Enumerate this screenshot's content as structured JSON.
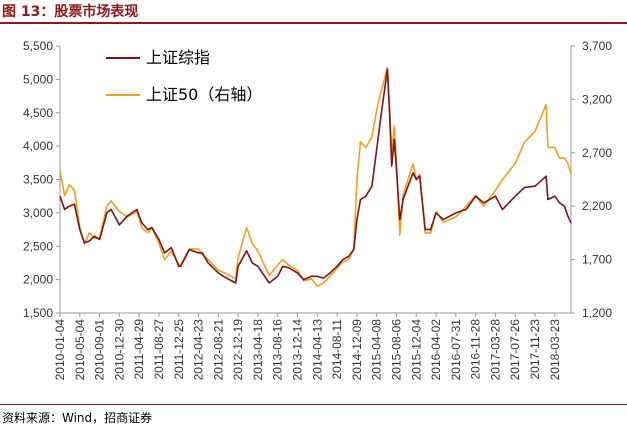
{
  "title": "图 13：股票市场表现",
  "source": "资料来源：Wind，招商证券",
  "colors": {
    "title": "#8b1a1a",
    "series1": "#7b1416",
    "series2": "#f0a020"
  },
  "chart_data": {
    "type": "line",
    "title": "",
    "legend_position": "top-left",
    "grid": false,
    "x_ticks": [
      "2010-01-04",
      "2010-05-04",
      "2010-09-01",
      "2010-12-30",
      "2011-04-29",
      "2011-08-27",
      "2011-12-25",
      "2012-04-23",
      "2012-08-21",
      "2012-12-19",
      "2013-04-18",
      "2013-08-16",
      "2013-12-14",
      "2014-04-13",
      "2014-08-11",
      "2014-12-09",
      "2015-04-08",
      "2015-08-06",
      "2015-12-04",
      "2016-04-02",
      "2016-07-31",
      "2016-11-28",
      "2017-03-28",
      "2017-07-26",
      "2017-11-23",
      "2018-03-23"
    ],
    "y_left": {
      "ticks": [
        "1,500",
        "2,000",
        "2,500",
        "3,000",
        "3,500",
        "4,000",
        "4,500",
        "5,000",
        "5,500"
      ],
      "range": [
        1500,
        5500
      ]
    },
    "y_right": {
      "ticks": [
        "1,200",
        "1,700",
        "2,200",
        "2,700",
        "3,200",
        "3,700"
      ],
      "range": [
        1200,
        3700
      ]
    },
    "series": [
      {
        "name": "上证综指",
        "axis": "left",
        "x": [
          "2010-01-04",
          "2010-02-01",
          "2010-03-01",
          "2010-04-01",
          "2010-05-04",
          "2010-06-01",
          "2010-07-01",
          "2010-08-01",
          "2010-09-01",
          "2010-10-15",
          "2010-11-10",
          "2010-12-30",
          "2011-02-15",
          "2011-04-15",
          "2011-05-15",
          "2011-06-20",
          "2011-07-15",
          "2011-08-27",
          "2011-09-30",
          "2011-11-10",
          "2011-12-25",
          "2012-01-06",
          "2012-02-27",
          "2012-04-23",
          "2012-05-15",
          "2012-06-20",
          "2012-08-21",
          "2012-09-20",
          "2012-12-04",
          "2012-12-19",
          "2013-02-08",
          "2013-03-15",
          "2013-04-18",
          "2013-06-25",
          "2013-08-16",
          "2013-09-15",
          "2013-10-20",
          "2013-12-14",
          "2014-01-20",
          "2014-03-10",
          "2014-04-13",
          "2014-05-20",
          "2014-06-20",
          "2014-08-11",
          "2014-09-15",
          "2014-10-20",
          "2014-11-20",
          "2014-12-09",
          "2014-12-31",
          "2015-02-01",
          "2015-03-10",
          "2015-04-08",
          "2015-05-01",
          "2015-06-12",
          "2015-06-25",
          "2015-07-08",
          "2015-07-24",
          "2015-08-06",
          "2015-08-26",
          "2015-09-15",
          "2015-10-15",
          "2015-11-15",
          "2015-12-04",
          "2015-12-25",
          "2016-01-27",
          "2016-02-29",
          "2016-04-02",
          "2016-05-15",
          "2016-07-31",
          "2016-10-01",
          "2016-11-28",
          "2017-01-15",
          "2017-03-28",
          "2017-05-10",
          "2017-07-26",
          "2017-09-20",
          "2017-11-23",
          "2018-01-29",
          "2018-02-09",
          "2018-03-23",
          "2018-04-20",
          "2018-05-20",
          "2018-06-10",
          "2018-06-29"
        ],
        "values": [
          3250,
          3050,
          3100,
          3130,
          2750,
          2550,
          2580,
          2650,
          2600,
          3000,
          3050,
          2820,
          2950,
          3050,
          2850,
          2750,
          2780,
          2600,
          2400,
          2480,
          2200,
          2200,
          2450,
          2400,
          2400,
          2250,
          2100,
          2050,
          1950,
          2200,
          2430,
          2250,
          2200,
          1950,
          2050,
          2200,
          2180,
          2100,
          2000,
          2050,
          2050,
          2020,
          2080,
          2200,
          2300,
          2350,
          2450,
          2900,
          3200,
          3250,
          3400,
          3950,
          4400,
          5150,
          4500,
          3700,
          4100,
          3650,
          2900,
          3200,
          3400,
          3600,
          3500,
          3550,
          2750,
          2750,
          3000,
          2900,
          3000,
          3050,
          3250,
          3150,
          3250,
          3050,
          3250,
          3380,
          3400,
          3550,
          3200,
          3250,
          3150,
          3100,
          2950,
          2850
        ]
      },
      {
        "name": "上证50（右轴）",
        "axis": "right",
        "x": [
          "2010-01-04",
          "2010-02-01",
          "2010-03-01",
          "2010-04-01",
          "2010-05-04",
          "2010-06-01",
          "2010-07-01",
          "2010-08-01",
          "2010-09-01",
          "2010-10-15",
          "2010-11-10",
          "2010-12-30",
          "2011-02-15",
          "2011-04-15",
          "2011-05-15",
          "2011-06-20",
          "2011-07-15",
          "2011-08-27",
          "2011-09-30",
          "2011-11-10",
          "2011-12-25",
          "2012-01-06",
          "2012-02-27",
          "2012-04-23",
          "2012-05-15",
          "2012-06-20",
          "2012-08-21",
          "2012-09-20",
          "2012-12-04",
          "2012-12-19",
          "2013-02-08",
          "2013-03-15",
          "2013-04-18",
          "2013-06-25",
          "2013-08-16",
          "2013-09-15",
          "2013-10-20",
          "2013-12-14",
          "2014-01-20",
          "2014-03-10",
          "2014-04-13",
          "2014-05-20",
          "2014-06-20",
          "2014-08-11",
          "2014-09-15",
          "2014-10-20",
          "2014-11-20",
          "2014-12-09",
          "2014-12-31",
          "2015-02-01",
          "2015-03-10",
          "2015-04-08",
          "2015-05-01",
          "2015-06-12",
          "2015-06-25",
          "2015-07-08",
          "2015-07-24",
          "2015-08-06",
          "2015-08-26",
          "2015-09-15",
          "2015-10-15",
          "2015-11-15",
          "2015-12-04",
          "2015-12-25",
          "2016-01-27",
          "2016-02-29",
          "2016-04-02",
          "2016-05-15",
          "2016-07-31",
          "2016-10-01",
          "2016-11-28",
          "2017-01-15",
          "2017-03-28",
          "2017-05-10",
          "2017-07-26",
          "2017-09-20",
          "2017-11-23",
          "2018-01-29",
          "2018-02-09",
          "2018-03-23",
          "2018-04-20",
          "2018-05-20",
          "2018-06-10",
          "2018-06-29"
        ],
        "values": [
          2530,
          2300,
          2400,
          2350,
          2000,
          1850,
          1950,
          1900,
          1900,
          2200,
          2250,
          2150,
          2100,
          2150,
          2000,
          1950,
          2000,
          1850,
          1700,
          1780,
          1650,
          1650,
          1800,
          1800,
          1750,
          1700,
          1600,
          1580,
          1520,
          1720,
          2000,
          1850,
          1780,
          1550,
          1650,
          1700,
          1650,
          1600,
          1500,
          1520,
          1450,
          1480,
          1530,
          1620,
          1680,
          1700,
          1800,
          2450,
          2800,
          2750,
          2850,
          3100,
          3250,
          3500,
          3100,
          2700,
          2950,
          2600,
          1930,
          2300,
          2450,
          2600,
          2450,
          2500,
          1950,
          1950,
          2150,
          2050,
          2100,
          2200,
          2300,
          2200,
          2350,
          2450,
          2600,
          2800,
          2900,
          3150,
          2750,
          2750,
          2650,
          2650,
          2600,
          2500
        ]
      }
    ]
  }
}
